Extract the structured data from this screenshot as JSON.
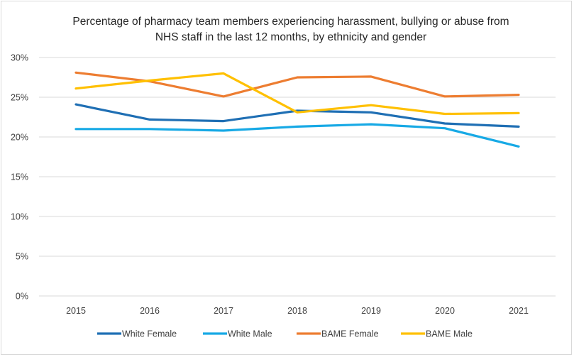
{
  "chart_data": {
    "type": "line",
    "title_line1": "Percentage of pharmacy team members experiencing harassment, bullying or abuse from",
    "title_line2": "NHS staff in the last 12 months, by ethnicity and gender",
    "categories": [
      "2015",
      "2016",
      "2017",
      "2018",
      "2019",
      "2020",
      "2021"
    ],
    "ylim": [
      0,
      30
    ],
    "yticks": [
      0,
      5,
      10,
      15,
      20,
      25,
      30
    ],
    "ytick_labels": [
      "0%",
      "5%",
      "10%",
      "15%",
      "20%",
      "25%",
      "30%"
    ],
    "grid": true,
    "legend_position": "bottom",
    "series": [
      {
        "name": "White Female",
        "color": "#1f6fb4",
        "values": [
          24.1,
          22.2,
          22.0,
          23.3,
          23.1,
          21.7,
          21.3
        ]
      },
      {
        "name": "White Male",
        "color": "#17a9e5",
        "values": [
          21.0,
          21.0,
          20.8,
          21.3,
          21.6,
          21.1,
          18.8
        ]
      },
      {
        "name": "BAME Female",
        "color": "#ed7d31",
        "values": [
          28.1,
          27.0,
          25.1,
          27.5,
          27.6,
          25.1,
          25.3
        ]
      },
      {
        "name": "BAME Male",
        "color": "#ffc000",
        "values": [
          26.1,
          27.1,
          28.0,
          23.1,
          24.0,
          22.9,
          23.0
        ]
      }
    ]
  }
}
